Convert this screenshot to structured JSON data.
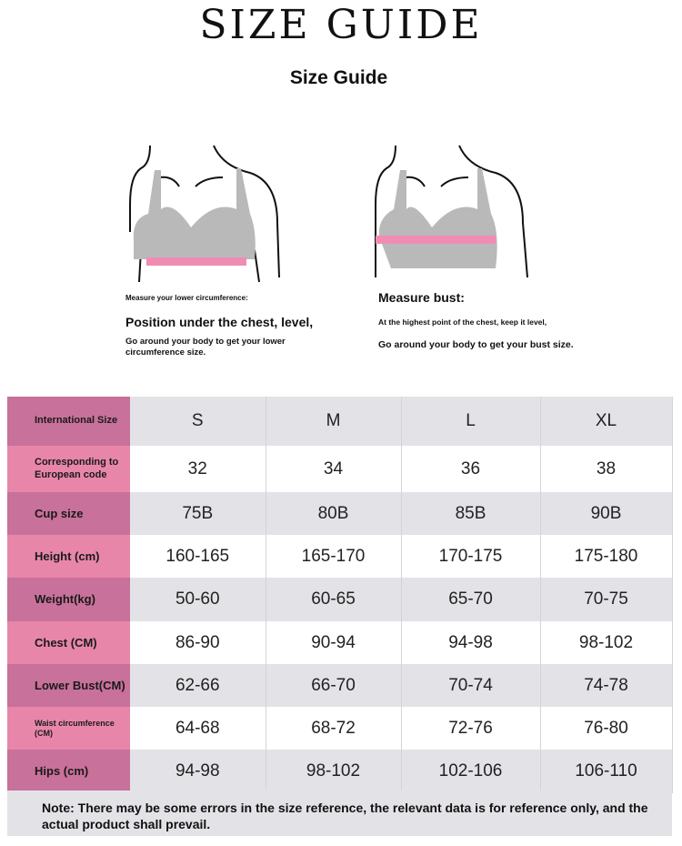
{
  "title": "SIZE GUIDE",
  "subtitle": "Size Guide",
  "left_panel": {
    "small": "Measure your lower circumference:",
    "heading": "Position under the chest, level,",
    "body": "Go around your body to get your lower circumference size."
  },
  "right_panel": {
    "heading": "Measure bust:",
    "line1": "At the highest point of the chest, keep it level,",
    "line2": "Go around your body to get your bust size."
  },
  "colors": {
    "label_dark": "#c8719a",
    "label_light": "#e886aa",
    "row_grey": "#e3e3e7",
    "band": "#f08cb4"
  },
  "table": {
    "rows": [
      {
        "label": "International Size",
        "values": [
          "S",
          "M",
          "L",
          "XL"
        ]
      },
      {
        "label": "Corresponding to European code",
        "values": [
          "32",
          "34",
          "36",
          "38"
        ]
      },
      {
        "label": "Cup size",
        "values": [
          "75B",
          "80B",
          "85B",
          "90B"
        ]
      },
      {
        "label": "Height (cm)",
        "values": [
          "160-165",
          "165-170",
          "170-175",
          "175-180"
        ]
      },
      {
        "label": "Weight(kg)",
        "values": [
          "50-60",
          "60-65",
          "65-70",
          "70-75"
        ]
      },
      {
        "label": "Chest (CM)",
        "values": [
          "86-90",
          "90-94",
          "94-98",
          "98-102"
        ]
      },
      {
        "label": "Lower Bust(CM)",
        "values": [
          "62-66",
          "66-70",
          "70-74",
          "74-78"
        ]
      },
      {
        "label": "Waist circumference (CM)",
        "values": [
          "64-68",
          "68-72",
          "72-76",
          "76-80"
        ]
      },
      {
        "label": "Hips (cm)",
        "values": [
          "94-98",
          "98-102",
          "102-106",
          "106-110"
        ]
      }
    ]
  },
  "note": "Note: There may be some errors in the size reference, the relevant data is for reference only, and the actual product shall prevail."
}
